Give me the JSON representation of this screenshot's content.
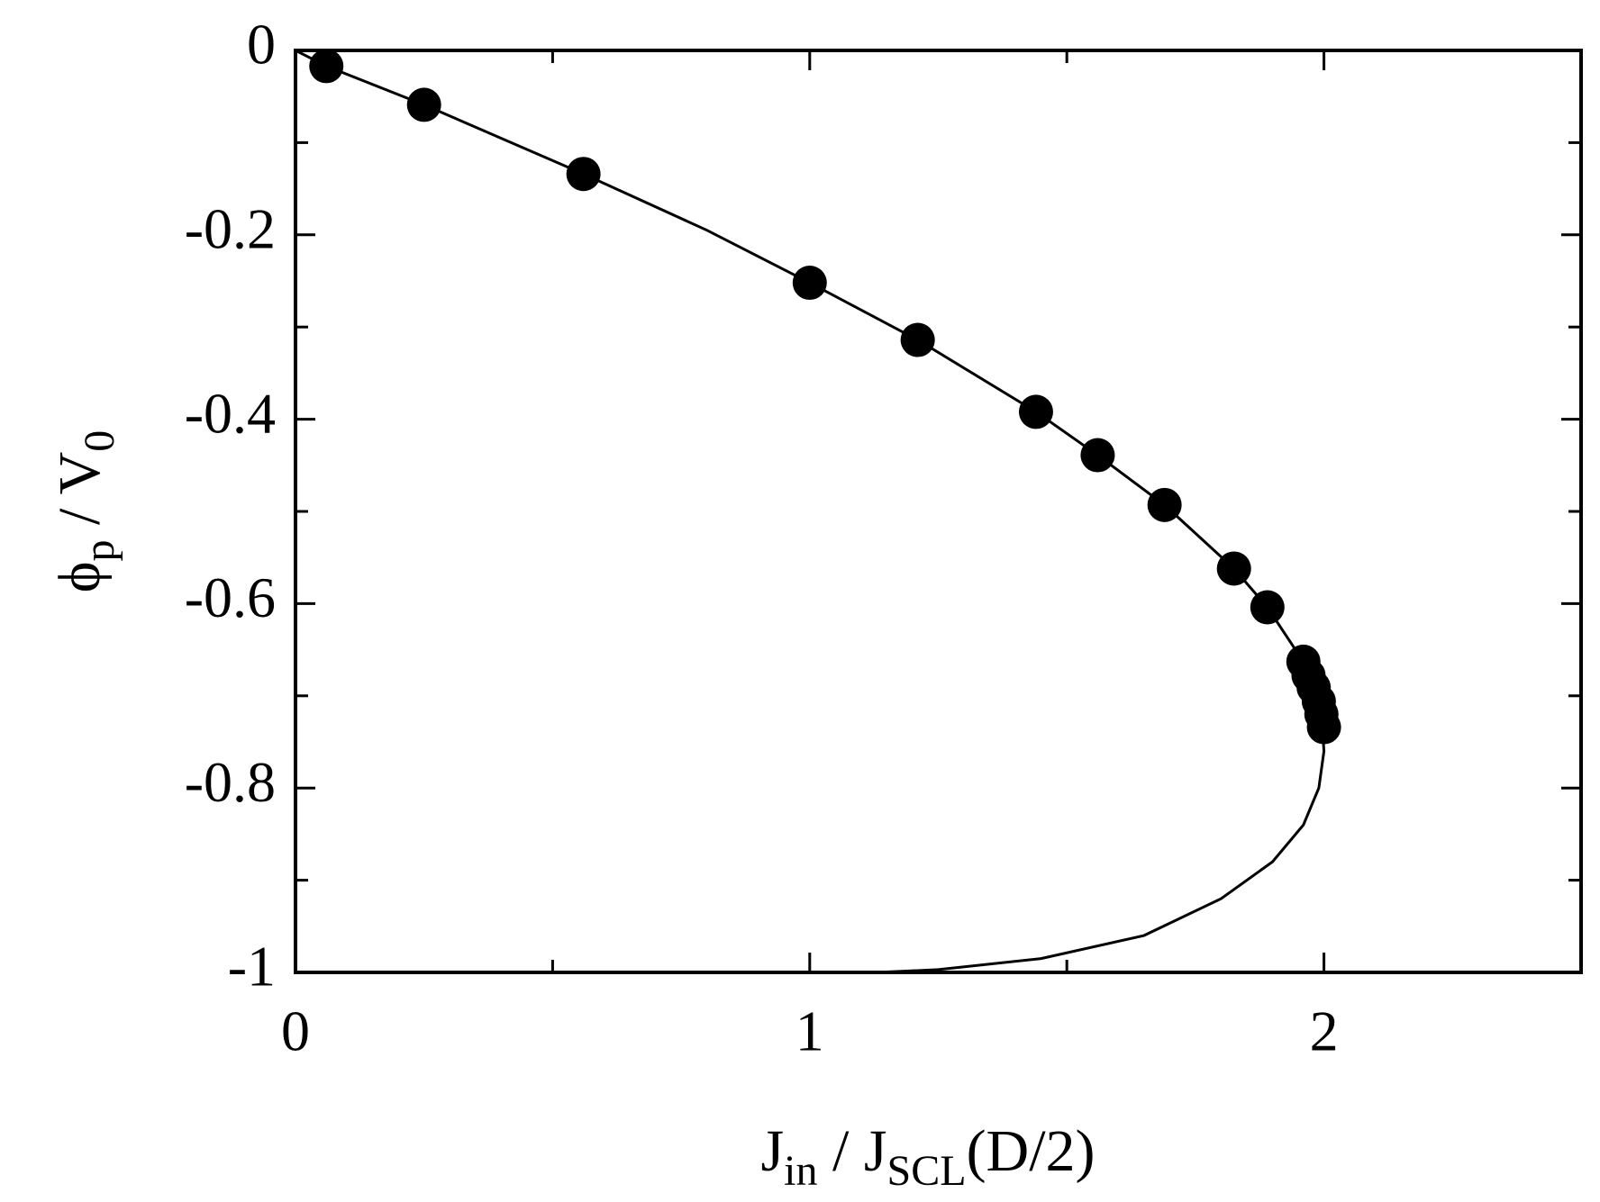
{
  "chart_data": {
    "type": "scatter",
    "xlabel": [
      {
        "text": "J"
      },
      {
        "text": "in",
        "sub": true
      },
      {
        "text": " / J"
      },
      {
        "text": "SCL",
        "sub": true
      },
      {
        "text": "(D/2)"
      }
    ],
    "ylabel": [
      {
        "text": "ϕ"
      },
      {
        "text": "p",
        "sub": true
      },
      {
        "text": " / V"
      },
      {
        "text": "0",
        "sub": true
      }
    ],
    "xlim": [
      0,
      2.5
    ],
    "ylim": [
      -1,
      0
    ],
    "xticks": [
      0,
      1,
      2
    ],
    "xticks_minor": [
      0.5,
      1.5
    ],
    "yticks": [
      0,
      -0.2,
      -0.4,
      -0.6,
      -0.8,
      -1
    ],
    "yticks_minor": [
      -0.1,
      -0.3,
      -0.5,
      -0.7,
      -0.9
    ],
    "color": "#000000",
    "series": [
      {
        "kind": "points",
        "x": [
          0.06,
          0.25,
          0.56,
          1.0,
          1.21,
          1.44,
          1.56,
          1.69,
          1.825,
          1.89,
          1.96,
          1.97,
          1.98,
          1.99,
          1.995,
          2.0
        ],
        "values": [
          -0.017,
          -0.059,
          -0.134,
          -0.252,
          -0.314,
          -0.392,
          -0.439,
          -0.493,
          -0.562,
          -0.604,
          -0.663,
          -0.678,
          -0.691,
          -0.706,
          -0.72,
          -0.734
        ]
      },
      {
        "kind": "line",
        "x": [
          0,
          0.06,
          0.25,
          0.56,
          0.8,
          1.0,
          1.21,
          1.44,
          1.56,
          1.69,
          1.825,
          1.89,
          1.96,
          1.995,
          2.0,
          1.99,
          1.96,
          1.9,
          1.8,
          1.65,
          1.45,
          1.25,
          1.13
        ],
        "values": [
          0,
          -0.017,
          -0.059,
          -0.134,
          -0.195,
          -0.252,
          -0.314,
          -0.392,
          -0.439,
          -0.493,
          -0.562,
          -0.604,
          -0.663,
          -0.72,
          -0.76,
          -0.8,
          -0.84,
          -0.88,
          -0.92,
          -0.96,
          -0.985,
          -0.997,
          -1
        ]
      }
    ]
  }
}
